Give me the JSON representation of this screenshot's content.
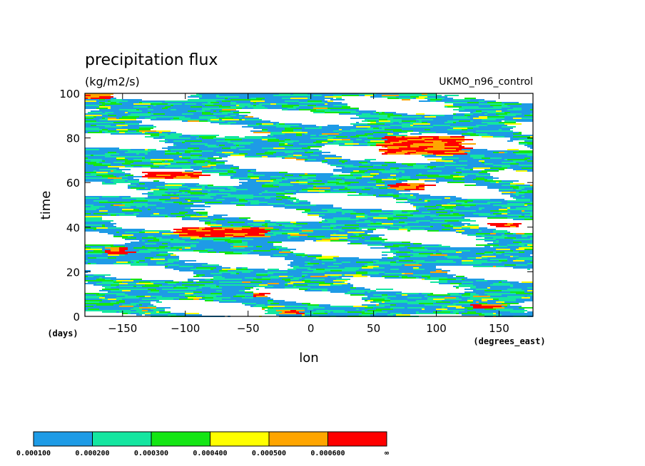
{
  "chart_data": {
    "type": "heatmap",
    "title": "precipitation flux",
    "units": "(kg/m2/s)",
    "dataset": "UKMO_n96_control",
    "xlabel": "lon",
    "xunits": "(degrees_east)",
    "ylabel": "time",
    "yunits": "(days)",
    "xlim": [
      -180,
      177
    ],
    "ylim": [
      0,
      100
    ],
    "xticks": [
      -150,
      -100,
      -50,
      0,
      50,
      100,
      150
    ],
    "yticks": [
      0,
      20,
      40,
      60,
      80,
      100
    ],
    "xtick_labels": [
      "−150",
      "−100",
      "−50",
      "0",
      "50",
      "100",
      "150"
    ],
    "ytick_labels": [
      "0",
      "20",
      "40",
      "60",
      "80",
      "100"
    ],
    "grid": false,
    "colorbar": {
      "levels": [
        0.0001,
        0.0002,
        0.0003,
        0.0004,
        0.0005,
        0.0006
      ],
      "labels": [
        "0.000100",
        "0.000200",
        "0.000300",
        "0.000400",
        "0.000500",
        "0.000600",
        "∞"
      ],
      "colors": [
        "#1e9be6",
        "#14e6a0",
        "#14e614",
        "#ffff00",
        "#ffa500",
        "#ff0000"
      ]
    },
    "heavy_rain_bands": [
      {
        "lon": [
          50,
          120
        ],
        "time": [
          73,
          81
        ]
      },
      {
        "lon": [
          -110,
          -40
        ],
        "time": [
          36,
          40
        ]
      },
      {
        "lon": [
          -165,
          -150
        ],
        "time": [
          28,
          31
        ]
      },
      {
        "lon": [
          -50,
          -40
        ],
        "time": [
          9,
          11
        ]
      },
      {
        "lon": [
          -30,
          -10
        ],
        "time": [
          1,
          3
        ]
      },
      {
        "lon": [
          125,
          150
        ],
        "time": [
          4,
          6
        ]
      },
      {
        "lon": [
          140,
          165
        ],
        "time": [
          40,
          42
        ]
      },
      {
        "lon": [
          60,
          90
        ],
        "time": [
          57,
          60
        ]
      },
      {
        "lon": [
          -140,
          -90
        ],
        "time": [
          62,
          65
        ]
      },
      {
        "lon": [
          -180,
          -160
        ],
        "time": [
          98,
          100
        ]
      }
    ]
  }
}
